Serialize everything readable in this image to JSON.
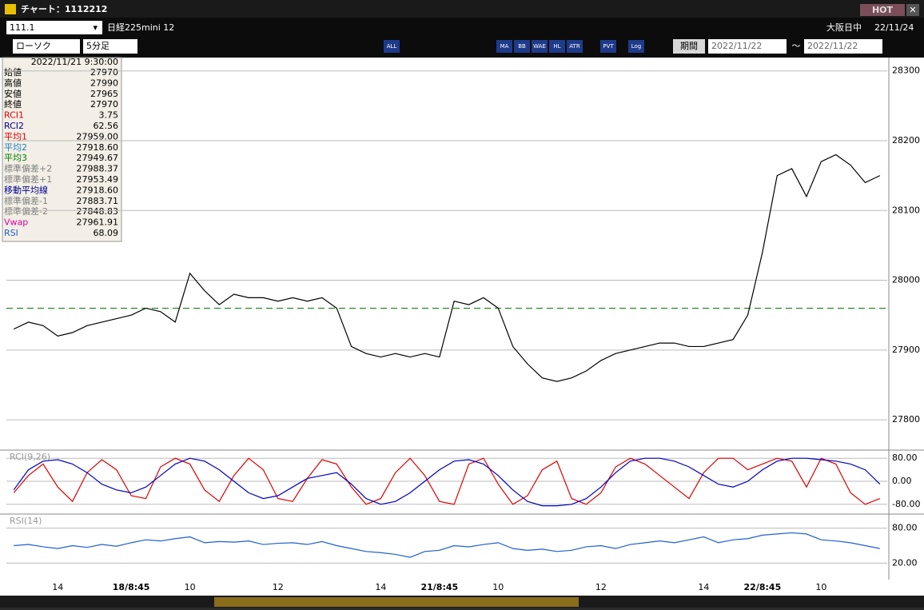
{
  "window": {
    "title": "チャート：1112212",
    "hot": "HOT"
  },
  "toolbar": {
    "symbol": "111.1",
    "name": "日経225mini 12",
    "session": "大阪日中",
    "date": "22/11/24",
    "chart_type": "ローソク",
    "interval": "5分足",
    "period": "期間",
    "date_from": "2022/11/22",
    "tilde": "～",
    "date_to": "2022/11/22",
    "buttons": [
      "ALL",
      "MA",
      "BB",
      "WAE",
      "HL",
      "ATR",
      "PVT",
      "Log"
    ]
  },
  "info": {
    "datetime": "2022/11/21 9:30:00",
    "rows": [
      {
        "label": "始値",
        "value": "27970",
        "color": "#000000"
      },
      {
        "label": "高値",
        "value": "27990",
        "color": "#000000"
      },
      {
        "label": "安値",
        "value": "27965",
        "color": "#000000"
      },
      {
        "label": "終値",
        "value": "27970",
        "color": "#000000"
      },
      {
        "label": "RCI1",
        "value": "3.75",
        "color": "#e00000"
      },
      {
        "label": "RCI2",
        "value": "62.56",
        "color": "#000090"
      },
      {
        "label": "平均1",
        "value": "27959.00",
        "color": "#e00000"
      },
      {
        "label": "平均2",
        "value": "27918.60",
        "color": "#2080c0"
      },
      {
        "label": "平均3",
        "value": "27949.67",
        "color": "#008000"
      },
      {
        "label": "標準偏差+2",
        "value": "27988.37",
        "color": "#808080"
      },
      {
        "label": "標準偏差+1",
        "value": "27953.49",
        "color": "#808080"
      },
      {
        "label": "移動平均線",
        "value": "27918.60",
        "color": "#000090"
      },
      {
        "label": "標準偏差-1",
        "value": "27883.71",
        "color": "#808080"
      },
      {
        "label": "標準偏差-2",
        "value": "27848.83",
        "color": "#808080"
      },
      {
        "label": "Vwap",
        "value": "27961.91",
        "color": "#e000a0"
      },
      {
        "label": "RSI",
        "value": "68.09",
        "color": "#1f5fd0"
      }
    ]
  },
  "chart_data": [
    {
      "type": "line",
      "categories": [
        null,
        null,
        null,
        "14",
        null,
        null,
        null,
        null,
        "18/8:45",
        null,
        null,
        null,
        "10",
        null,
        null,
        null,
        null,
        null,
        "12",
        null,
        null,
        null,
        null,
        null,
        null,
        "14",
        null,
        null,
        null,
        "21/8:45",
        null,
        null,
        null,
        "10",
        null,
        null,
        null,
        null,
        null,
        null,
        "12",
        null,
        null,
        null,
        null,
        null,
        null,
        "14",
        null,
        null,
        null,
        "22/8:45",
        null,
        null,
        null,
        "10",
        null,
        null,
        null,
        null
      ],
      "series": [
        {
          "name": "終値",
          "color": "#000000",
          "values": [
            27930,
            27940,
            27935,
            27920,
            27925,
            27935,
            27940,
            27945,
            27950,
            27960,
            27955,
            27940,
            28010,
            27985,
            27965,
            27980,
            27975,
            27975,
            27970,
            27975,
            27970,
            27975,
            27960,
            27905,
            27895,
            27890,
            27895,
            27890,
            27895,
            27890,
            27970,
            27965,
            27975,
            27960,
            27905,
            27880,
            27860,
            27855,
            27860,
            27870,
            27885,
            27895,
            27900,
            27905,
            27910,
            27910,
            27905,
            27905,
            27910,
            27915,
            27950,
            28040,
            28150,
            28160,
            28120,
            28170,
            28180,
            28165,
            28140,
            28150
          ]
        }
      ],
      "reference_line": {
        "value": 27960,
        "color": "#008000"
      },
      "ylim": [
        27760,
        28310
      ],
      "yticks": [
        27800,
        27900,
        28000,
        28100,
        28200,
        28300
      ],
      "grid": true
    },
    {
      "type": "line",
      "title": "RCI(9,26)",
      "series": [
        {
          "name": "RCI1",
          "color": "#e00000",
          "values": [
            -40,
            20,
            60,
            -20,
            -70,
            30,
            75,
            40,
            -50,
            -60,
            50,
            80,
            60,
            -30,
            -70,
            20,
            80,
            40,
            -60,
            -70,
            10,
            75,
            60,
            -20,
            -80,
            -60,
            30,
            80,
            20,
            -70,
            -80,
            60,
            80,
            -10,
            -80,
            -50,
            40,
            70,
            -60,
            -80,
            -40,
            50,
            80,
            60,
            20,
            -20,
            -60,
            30,
            80,
            80,
            40,
            60,
            80,
            70,
            -20,
            80,
            60,
            -40,
            -80,
            -60
          ]
        },
        {
          "name": "RCI2",
          "color": "#0000c0",
          "values": [
            -30,
            40,
            70,
            75,
            60,
            30,
            -10,
            -30,
            -40,
            -20,
            20,
            60,
            80,
            70,
            40,
            0,
            -40,
            -60,
            -50,
            -20,
            10,
            20,
            30,
            -10,
            -60,
            -80,
            -70,
            -40,
            0,
            40,
            70,
            75,
            60,
            20,
            -30,
            -70,
            -85,
            -85,
            -80,
            -60,
            -20,
            30,
            70,
            80,
            80,
            70,
            50,
            20,
            -10,
            -20,
            0,
            40,
            70,
            80,
            80,
            75,
            70,
            60,
            40,
            -10
          ]
        }
      ],
      "ylim": [
        -100,
        100
      ],
      "yticks": [
        {
          "value": 80,
          "label": "80.00"
        },
        {
          "value": 0,
          "label": "0.00"
        },
        {
          "value": -80,
          "label": "-80.00"
        }
      ],
      "grid": true
    },
    {
      "type": "line",
      "title": "RSI(14)",
      "series": [
        {
          "name": "RSI",
          "color": "#1f5fd0",
          "values": [
            50,
            52,
            48,
            45,
            50,
            47,
            52,
            49,
            55,
            60,
            58,
            62,
            65,
            55,
            57,
            56,
            58,
            52,
            54,
            55,
            52,
            57,
            50,
            45,
            40,
            38,
            35,
            30,
            40,
            42,
            50,
            48,
            52,
            55,
            45,
            42,
            44,
            40,
            42,
            48,
            50,
            45,
            52,
            55,
            58,
            55,
            60,
            65,
            55,
            60,
            62,
            68,
            70,
            72,
            70,
            60,
            58,
            55,
            50,
            45
          ]
        }
      ],
      "ylim": [
        0,
        100
      ],
      "yticks": [
        {
          "value": 80,
          "label": "80.00"
        },
        {
          "value": 20,
          "label": "20.00"
        }
      ],
      "grid": true
    }
  ]
}
